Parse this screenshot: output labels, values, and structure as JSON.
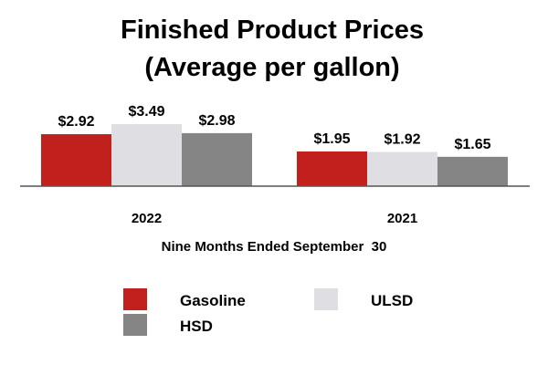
{
  "chart_data": {
    "type": "bar",
    "title": "Finished Product Prices",
    "subtitle": "(Average per gallon)",
    "xlabel": "Nine Months Ended September  30",
    "ylabel": "",
    "categories": [
      "2022",
      "2021"
    ],
    "series": [
      {
        "name": "Gasoline",
        "color": "#c1201c",
        "values": [
          2.92,
          1.95
        ],
        "labels": [
          "$2.92",
          "$1.95"
        ]
      },
      {
        "name": "ULSD",
        "color": "#dedee3",
        "values": [
          3.49,
          1.92
        ],
        "labels": [
          "$3.49",
          "$1.92"
        ]
      },
      {
        "name": "HSD",
        "color": "#858585",
        "values": [
          2.98,
          1.65
        ],
        "labels": [
          "$2.98",
          "$1.65"
        ]
      }
    ],
    "ylim": [
      0,
      3.5
    ],
    "grid": false,
    "legend_position": "bottom"
  }
}
